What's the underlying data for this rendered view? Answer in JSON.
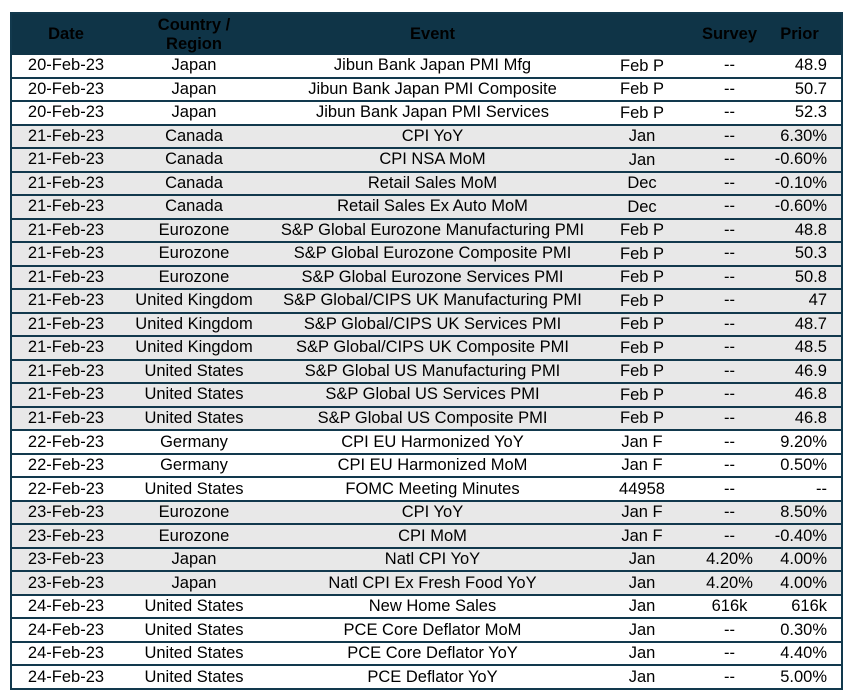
{
  "colors": {
    "header_bg": "#0f3447",
    "header_text": "#ffffff",
    "row_bg": "#ffffff",
    "row_alt_bg": "#e8e8e8",
    "border": "#12394d",
    "body_text": "#000000"
  },
  "table": {
    "headers": {
      "date": "Date",
      "country": "Country /\nRegion",
      "event": "Event",
      "period": "",
      "survey": "Survey",
      "prior": "Prior"
    },
    "rows": [
      {
        "date": "20-Feb-23",
        "country": "Japan",
        "event": "Jibun Bank Japan PMI Mfg",
        "period": "Feb P",
        "survey": "--",
        "prior": "48.9",
        "shaded": false
      },
      {
        "date": "20-Feb-23",
        "country": "Japan",
        "event": "Jibun Bank Japan PMI Composite",
        "period": "Feb P",
        "survey": "--",
        "prior": "50.7",
        "shaded": false
      },
      {
        "date": "20-Feb-23",
        "country": "Japan",
        "event": "Jibun Bank Japan PMI Services",
        "period": "Feb P",
        "survey": "--",
        "prior": "52.3",
        "shaded": false
      },
      {
        "date": "21-Feb-23",
        "country": "Canada",
        "event": "CPI YoY",
        "period": "Jan",
        "survey": "--",
        "prior": "6.30%",
        "shaded": true
      },
      {
        "date": "21-Feb-23",
        "country": "Canada",
        "event": "CPI NSA MoM",
        "period": "Jan",
        "survey": "--",
        "prior": "-0.60%",
        "shaded": true
      },
      {
        "date": "21-Feb-23",
        "country": "Canada",
        "event": "Retail Sales MoM",
        "period": "Dec",
        "survey": "--",
        "prior": "-0.10%",
        "shaded": true
      },
      {
        "date": "21-Feb-23",
        "country": "Canada",
        "event": "Retail Sales Ex Auto MoM",
        "period": "Dec",
        "survey": "--",
        "prior": "-0.60%",
        "shaded": true
      },
      {
        "date": "21-Feb-23",
        "country": "Eurozone",
        "event": "S&P Global Eurozone Manufacturing PMI",
        "period": "Feb P",
        "survey": "--",
        "prior": "48.8",
        "shaded": true
      },
      {
        "date": "21-Feb-23",
        "country": "Eurozone",
        "event": "S&P Global Eurozone Composite PMI",
        "period": "Feb P",
        "survey": "--",
        "prior": "50.3",
        "shaded": true
      },
      {
        "date": "21-Feb-23",
        "country": "Eurozone",
        "event": "S&P Global Eurozone Services PMI",
        "period": "Feb P",
        "survey": "--",
        "prior": "50.8",
        "shaded": true
      },
      {
        "date": "21-Feb-23",
        "country": "United Kingdom",
        "event": "S&P Global/CIPS UK Manufacturing PMI",
        "period": "Feb P",
        "survey": "--",
        "prior": "47",
        "shaded": true
      },
      {
        "date": "21-Feb-23",
        "country": "United Kingdom",
        "event": "S&P Global/CIPS UK Services PMI",
        "period": "Feb P",
        "survey": "--",
        "prior": "48.7",
        "shaded": true
      },
      {
        "date": "21-Feb-23",
        "country": "United Kingdom",
        "event": "S&P Global/CIPS UK Composite PMI",
        "period": "Feb P",
        "survey": "--",
        "prior": "48.5",
        "shaded": true
      },
      {
        "date": "21-Feb-23",
        "country": "United States",
        "event": "S&P Global US Manufacturing PMI",
        "period": "Feb P",
        "survey": "--",
        "prior": "46.9",
        "shaded": true
      },
      {
        "date": "21-Feb-23",
        "country": "United States",
        "event": "S&P Global US Services PMI",
        "period": "Feb P",
        "survey": "--",
        "prior": "46.8",
        "shaded": true
      },
      {
        "date": "21-Feb-23",
        "country": "United States",
        "event": "S&P Global US Composite PMI",
        "period": "Feb P",
        "survey": "--",
        "prior": "46.8",
        "shaded": true
      },
      {
        "date": "22-Feb-23",
        "country": "Germany",
        "event": "CPI EU Harmonized YoY",
        "period": "Jan F",
        "survey": "--",
        "prior": "9.20%",
        "shaded": false
      },
      {
        "date": "22-Feb-23",
        "country": "Germany",
        "event": "CPI EU Harmonized MoM",
        "period": "Jan F",
        "survey": "--",
        "prior": "0.50%",
        "shaded": false
      },
      {
        "date": "22-Feb-23",
        "country": "United States",
        "event": "FOMC Meeting Minutes",
        "period": "44958",
        "survey": "--",
        "prior": "--",
        "shaded": false
      },
      {
        "date": "23-Feb-23",
        "country": "Eurozone",
        "event": "CPI YoY",
        "period": "Jan F",
        "survey": "--",
        "prior": "8.50%",
        "shaded": true
      },
      {
        "date": "23-Feb-23",
        "country": "Eurozone",
        "event": "CPI MoM",
        "period": "Jan F",
        "survey": "--",
        "prior": "-0.40%",
        "shaded": true
      },
      {
        "date": "23-Feb-23",
        "country": "Japan",
        "event": "Natl CPI YoY",
        "period": "Jan",
        "survey": "4.20%",
        "prior": "4.00%",
        "shaded": true
      },
      {
        "date": "23-Feb-23",
        "country": "Japan",
        "event": "Natl CPI Ex Fresh Food YoY",
        "period": "Jan",
        "survey": "4.20%",
        "prior": "4.00%",
        "shaded": true
      },
      {
        "date": "24-Feb-23",
        "country": "United States",
        "event": "New Home Sales",
        "period": "Jan",
        "survey": "616k",
        "prior": "616k",
        "shaded": false
      },
      {
        "date": "24-Feb-23",
        "country": "United States",
        "event": "PCE Core Deflator MoM",
        "period": "Jan",
        "survey": "--",
        "prior": "0.30%",
        "shaded": false
      },
      {
        "date": "24-Feb-23",
        "country": "United States",
        "event": "PCE Core Deflator YoY",
        "period": "Jan",
        "survey": "--",
        "prior": "4.40%",
        "shaded": false
      },
      {
        "date": "24-Feb-23",
        "country": "United States",
        "event": "PCE Deflator YoY",
        "period": "Jan",
        "survey": "--",
        "prior": "5.00%",
        "shaded": false
      }
    ]
  }
}
